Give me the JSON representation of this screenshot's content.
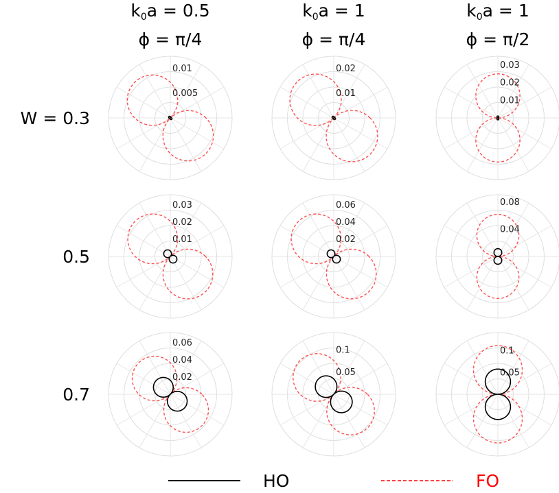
{
  "chart_data": {
    "type": "polar",
    "description_grid": "3x3 polar radiation patterns",
    "column_titles": [
      [
        "k",
        "0",
        "a = 0.5",
        "ϕ = π/4"
      ],
      [
        "k",
        "0",
        "a = 1",
        "ϕ = π/4"
      ],
      [
        "k",
        "0",
        "a = 1",
        "ϕ = π/2"
      ]
    ],
    "row_labels": [
      "W = 0.3",
      "0.5",
      "0.7"
    ],
    "legend": [
      {
        "name": "HO",
        "color": "#000000",
        "style": "solid"
      },
      {
        "name": "FO",
        "color": "#ff0000",
        "style": "dashed"
      }
    ],
    "panels": [
      {
        "row": 0,
        "col": 0,
        "rmax": 0.0125,
        "ticks": [
          "0.01",
          "0.005"
        ],
        "tick_values": [
          0.01,
          0.005
        ],
        "ho": {
          "amp": 0.0004,
          "axis_deg": 135
        },
        "fo": {
          "amp": 0.0102,
          "axis_deg": 135
        }
      },
      {
        "row": 0,
        "col": 1,
        "rmax": 0.025,
        "ticks": [
          "0.02",
          "0.01"
        ],
        "tick_values": [
          0.02,
          0.01
        ],
        "ho": {
          "amp": 0.0008,
          "axis_deg": 135
        },
        "fo": {
          "amp": 0.0208,
          "axis_deg": 135
        }
      },
      {
        "row": 0,
        "col": 2,
        "rmax": 0.035,
        "ticks": [
          "0.03",
          "0.02",
          "0.01"
        ],
        "tick_values": [
          0.03,
          0.02,
          0.01
        ],
        "ho": {
          "amp": 0.0011,
          "axis_deg": 90
        },
        "fo": {
          "amp": 0.025,
          "axis_deg": 90
        }
      },
      {
        "row": 1,
        "col": 0,
        "rmax": 0.036,
        "ticks": [
          "0.03",
          "0.02",
          "0.01"
        ],
        "tick_values": [
          0.03,
          0.02,
          0.01
        ],
        "ho": {
          "amp": 0.0045,
          "axis_deg": 135
        },
        "fo": {
          "amp": 0.029,
          "axis_deg": 135
        }
      },
      {
        "row": 1,
        "col": 1,
        "rmax": 0.072,
        "ticks": [
          "0.06",
          "0.04",
          "0.02"
        ],
        "tick_values": [
          0.06,
          0.04,
          0.02
        ],
        "ho": {
          "amp": 0.009,
          "axis_deg": 135
        },
        "fo": {
          "amp": 0.058,
          "axis_deg": 135
        }
      },
      {
        "row": 1,
        "col": 2,
        "rmax": 0.091,
        "ticks": [
          "0.08",
          "0.04"
        ],
        "tick_values": [
          0.08,
          0.04
        ],
        "ho": {
          "amp": 0.0115,
          "axis_deg": 90
        },
        "fo": {
          "amp": 0.062,
          "axis_deg": 90
        }
      },
      {
        "row": 2,
        "col": 0,
        "rmax": 0.072,
        "ticks": [
          "0.06",
          "0.04",
          "0.02"
        ],
        "tick_values": [
          0.06,
          0.04,
          0.02
        ],
        "ho": {
          "amp": 0.023,
          "axis_deg": 135
        },
        "fo": {
          "amp": 0.052,
          "axis_deg": 135
        }
      },
      {
        "row": 2,
        "col": 1,
        "rmax": 0.14,
        "ticks": [
          "0.1",
          "0.05"
        ],
        "tick_values": [
          0.1,
          0.05
        ],
        "ho": {
          "amp": 0.049,
          "axis_deg": 135
        },
        "fo": {
          "amp": 0.108,
          "axis_deg": 135
        }
      },
      {
        "row": 2,
        "col": 2,
        "rmax": 0.142,
        "ticks": [
          "0.1",
          "0.05"
        ],
        "tick_values": [
          0.1,
          0.05
        ],
        "ho": {
          "amp": 0.058,
          "axis_deg": 90
        },
        "fo": {
          "amp": 0.112,
          "axis_deg": 90
        }
      }
    ]
  }
}
